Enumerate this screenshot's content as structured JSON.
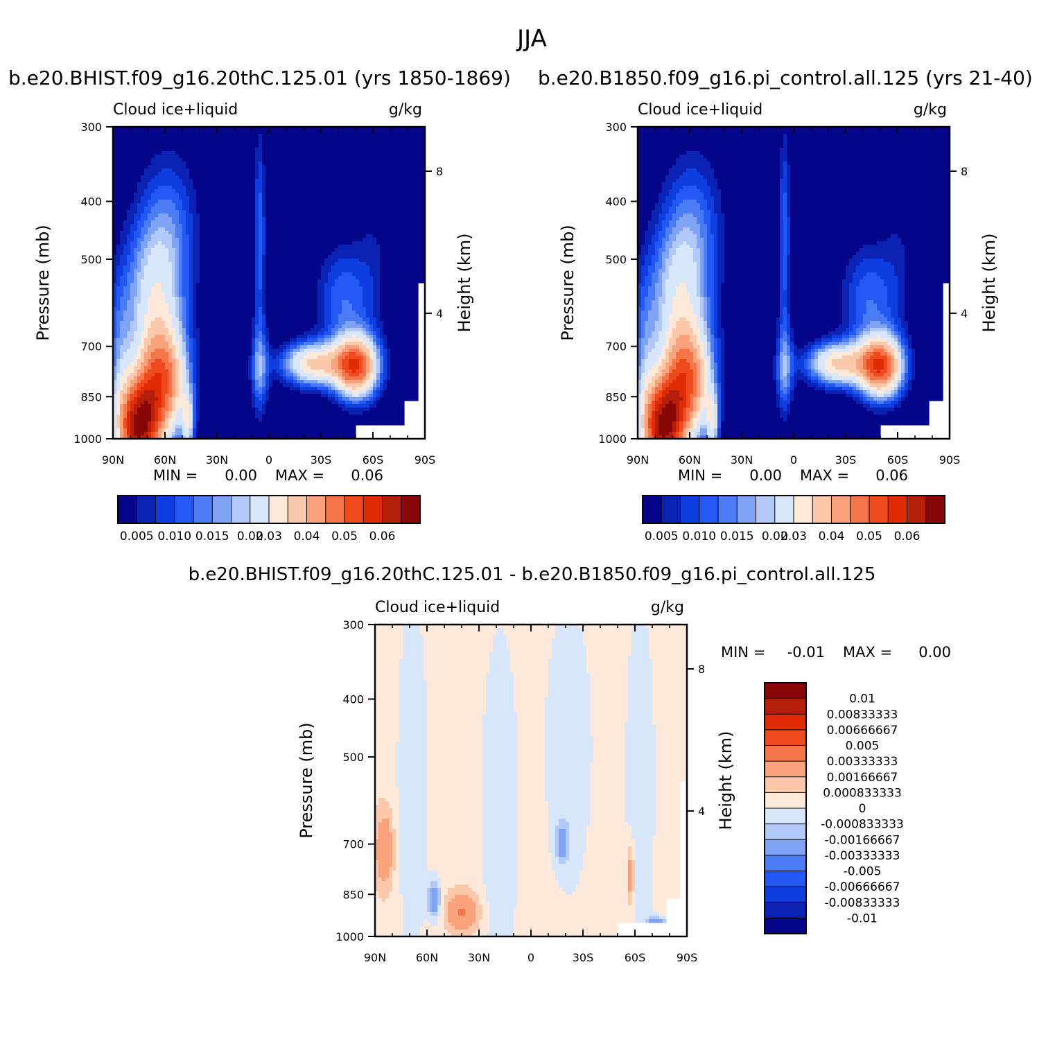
{
  "title": "JJA",
  "panels": [
    {
      "id": "left",
      "title": "b.e20.BHIST.f09_g16.20thC.125.01 (yrs 1850-1869)",
      "variable": "Cloud ice+liquid",
      "units": "g/kg",
      "min_label": "MIN =",
      "min_value": "0.00",
      "max_label": "MAX =",
      "max_value": "0.06"
    },
    {
      "id": "right",
      "title": "b.e20.B1850.f09_g16.pi_control.all.125 (yrs 21-40)",
      "variable": "Cloud ice+liquid",
      "units": "g/kg",
      "min_label": "MIN =",
      "min_value": "0.00",
      "max_label": "MAX =",
      "max_value": "0.06"
    },
    {
      "id": "diff",
      "title": "b.e20.BHIST.f09_g16.20thC.125.01 - b.e20.B1850.f09_g16.pi_control.all.125",
      "variable": "Cloud ice+liquid",
      "units": "g/kg",
      "min_label": "MIN =",
      "min_value": "-0.01",
      "max_label": "MAX =",
      "max_value": "0.00"
    }
  ],
  "chart_data": [
    {
      "type": "heatmap",
      "title": "b.e20.BHIST.f09_g16.20thC.125.01 (yrs 1850-1869)",
      "xlabel": "",
      "ylabel": "Pressure (mb)",
      "y2label": "Height (km)",
      "xticks": [
        "90N",
        "60N",
        "30N",
        "0",
        "30S",
        "60S",
        "90S"
      ],
      "yticks": [
        "300",
        "400",
        "500",
        "700",
        "850",
        "1000"
      ],
      "y2ticks": [
        "8",
        "4"
      ],
      "contour_levels": [
        0.005,
        0.01,
        0.015,
        0.02,
        0.03,
        0.04,
        0.05,
        0.06
      ],
      "min": 0.0,
      "max": 0.06
    },
    {
      "type": "heatmap",
      "title": "b.e20.B1850.f09_g16.pi_control.all.125 (yrs 21-40)",
      "xlabel": "",
      "ylabel": "Pressure (mb)",
      "y2label": "Height (km)",
      "xticks": [
        "90N",
        "60N",
        "30N",
        "0",
        "30S",
        "60S",
        "90S"
      ],
      "yticks": [
        "300",
        "400",
        "500",
        "700",
        "850",
        "1000"
      ],
      "y2ticks": [
        "8",
        "4"
      ],
      "contour_levels": [
        0.005,
        0.01,
        0.015,
        0.02,
        0.03,
        0.04,
        0.05,
        0.06
      ],
      "min": 0.0,
      "max": 0.06
    },
    {
      "type": "heatmap",
      "title": "b.e20.BHIST.f09_g16.20thC.125.01 - b.e20.B1850.f09_g16.pi_control.all.125",
      "xlabel": "",
      "ylabel": "Pressure (mb)",
      "y2label": "Height (km)",
      "xticks": [
        "90N",
        "60N",
        "30N",
        "0",
        "30S",
        "60S",
        "90S"
      ],
      "yticks": [
        "300",
        "400",
        "500",
        "700",
        "850",
        "1000"
      ],
      "y2ticks": [
        "8",
        "4"
      ],
      "contour_levels": [
        0.01,
        0.00833333,
        0.00666667,
        0.005,
        0.00333333,
        0.00166667,
        0.000833333,
        0,
        -0.000833333,
        -0.00166667,
        -0.00333333,
        -0.005,
        -0.00666667,
        -0.00833333,
        -0.01
      ],
      "min": -0.01,
      "max": 0.0
    }
  ],
  "colorbars": {
    "top_labels": [
      "0.005",
      "0.010",
      "0.015",
      "0.02",
      "0.03",
      "0.04",
      "0.05",
      "0.06"
    ],
    "top_colors": [
      "#06068a",
      "#0a23b5",
      "#0f3ee0",
      "#2458f5",
      "#4a7cf5",
      "#7fa3f5",
      "#b2c9f7",
      "#d8e6fb",
      "#fde9d9",
      "#fbc8aa",
      "#f9a27b",
      "#f6744a",
      "#ef4a1d",
      "#df2c06",
      "#b41f0a",
      "#880808"
    ],
    "diff_labels": [
      "0.01",
      "0.00833333",
      "0.00666667",
      "0.005",
      "0.00333333",
      "0.00166667",
      "0.000833333",
      "0",
      "-0.000833333",
      "-0.00166667",
      "-0.00333333",
      "-0.005",
      "-0.00666667",
      "-0.00833333",
      "-0.01"
    ],
    "diff_colors": [
      "#880808",
      "#b41f0a",
      "#df2c06",
      "#ef4a1d",
      "#f6744a",
      "#f9a27b",
      "#fbc8aa",
      "#fde9d9",
      "#d8e6fb",
      "#b2c9f7",
      "#7fa3f5",
      "#4a7cf5",
      "#2458f5",
      "#0f3ee0",
      "#0a23b5",
      "#06068a"
    ]
  }
}
